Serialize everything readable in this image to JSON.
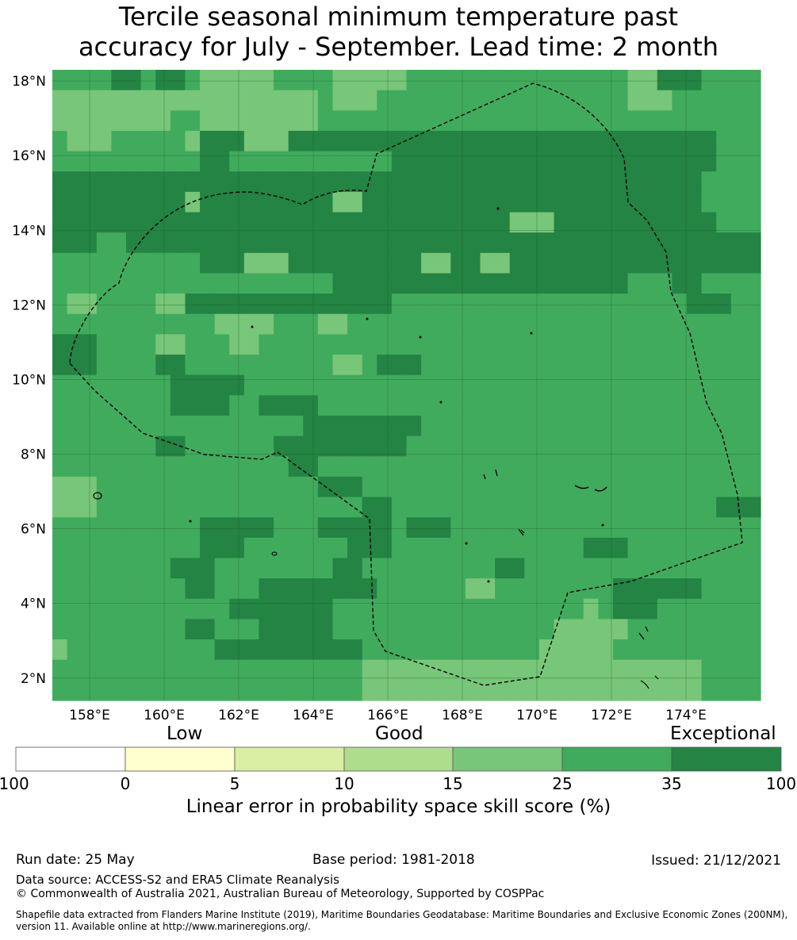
{
  "title": {
    "line1": "Tercile seasonal minimum temperature past",
    "line2": "accuracy for July - September. Lead time: 2 month"
  },
  "map": {
    "lon_labels": [
      "158°E",
      "160°E",
      "162°E",
      "164°E",
      "166°E",
      "168°E",
      "170°E",
      "172°E",
      "174°E"
    ],
    "lat_labels": [
      "18°N",
      "16°N",
      "14°N",
      "12°N",
      "10°N",
      "8°N",
      "6°N",
      "4°N",
      "2°N"
    ],
    "lon_range": [
      157.0,
      176.0
    ],
    "lat_range": [
      1.4,
      18.3
    ],
    "grid_cell_deg": 0.833,
    "rows_north_to_south": [
      "MMMMDDMMMMLLLLMMMMMMMMLLMMMMMMMMMMMMMMMMMMMMMMMM",
      "LLLLLLLLMMLLLLLLLLMMMMMMMMMMMMMMMMMMMMMMMMMMMMMM",
      "LLLLLLLLMMLLLLLLLLMMMMMMMMMMMMMMMMMMMMMMMMMMMMMM",
      "MMMMMMMMMMDDDDDDDDDDDDDDDDDDDDDDDDDDDDDDDDDDDMMM",
      "MMMMMMMMMMDDDDDDDDDDDDDDDDDDDDDDDDDDDDDDDDDDDMMM",
      "DDDDDDDDDDDDDDDDDDDDDDDDDDDDDDDDDDDDDDDDDDDDMMMM",
      "DDDDDDDDDDDDDDDDDDDDDDDDDDDDDDDDDDDDDDDDDDDDMMMM",
      "DDDDDDDDDDDDDDDDDDDDDDDDDDDDDDDDDDDDDDDDDDDDDMMM",
      "DDDDDDDDDDDDDDDDDDDDDDDDDDDDDDDDDDDDDDDDDDDDDDDD",
      "MMMMMMMMMMDDDDDDDDDDDDDDDDDDDDDDDDDDDDDDDDDDDDDD",
      "MMMMMMMMMMMMMMDDDDDDDDDDDDDDDDDDDDDDDDDDDDDDMMMM",
      "MMMMMMMMMMMMMMMMMMMMMMMMMMMMMMMMMMMMMMMMMMMMMMMM",
      "MMMMMMMMMMMMMMMMMMMMMMMMMMMMMMMMMMMMMMMMMMMMMMMM",
      "MMMMMMMMMMMMMMMMMMMMMMMMMMMMMMMMMMMMMMMMMMMMMMMM",
      "MMMMMMMMMMMMMMMMMMMMMMMMMMMMMMMMMMMMMMMMMMMMMMMM",
      "MMMMMMMMMMMMMMMMMMMMMMMMMMMMMMMMMMMMMMMMMMMMMMMM",
      "MMMMMMMMMMMMMMMMMMMMMMMMMMMMMMMMMMMMMMMMMMMMMMMM",
      "MMMMMMMMMMMMMMMMMMMMMMMMMMMMMMMMMMMMMMMMMMMMMMMM",
      "MMMMMMMMMMMMMMMMMMMMMMMMMMMMMMMMMMMMMMMMMMMMMMMM",
      "MMMMMMMMMMMMMMMMMMMMMMMMMMMMMMMMMMMMMMMMMMMMMMMM",
      "MMMMMMMMMMMMMMMMMMMMMMMMMMMMMMMMMMMMMMMMMMMMMMMM",
      "MMMMMMMMMMMMMMMMMMMMMMMMMMMMMMMMMMMMMMMMMMMMMMMM",
      "MMMMMMMMMMMMMMMMMMMMMMMMMMMMMMMMMMMMMMMMMMMMMMMM",
      "MMMMMMMMMMMMMMMMMMMMMMMMMMMMMMMMMMMMMMMMMMMMMMMM",
      "MMMMMMMMMMMMMMMMMMMMMMMMMMMMMMMMMMMMMMMMMMMMMMMM",
      "MMMMMMMMMMMMMMMMMMMMMMMMMMMMMMMMMMMMMMMMMMMMMMMM",
      "MMMMMMMMMMMMMMMMMMMMMMMMMMMMMMMMMMMMMMMMMMMMMMMM",
      "MMMMMMMMMMMMMMMMMMMMMMMMMMMMMMMMMMMMMMMMMMMMMMMM",
      "MMMMMMMMMMMMMMMMMMMMMMMMMMMMMMMMMMMMMMMMMMMMMMMM",
      "MMMMMMMMMMMMMMMMMMMMMMMMMMMMMMMMMMMMMMMMMMMMMMMM",
      "MMMMMMMMMMMMMMMMMMMMMMMMMMMMMMMMMMMMMMMMMMMMMMMM"
    ],
    "overrides": [
      [
        "L",
        0,
        13,
        15
      ],
      [
        "L",
        0,
        19,
        22
      ],
      [
        "L",
        0,
        39,
        42
      ],
      [
        "D",
        0,
        7,
        9
      ],
      [
        "D",
        0,
        41,
        44
      ],
      [
        "L",
        1,
        0,
        12
      ],
      [
        "L",
        1,
        19,
        22
      ],
      [
        "L",
        1,
        39,
        42
      ],
      [
        "L",
        2,
        0,
        2
      ],
      [
        "L",
        2,
        5,
        7
      ],
      [
        "L",
        2,
        12,
        13
      ],
      [
        "L",
        2,
        14,
        16
      ],
      [
        "L",
        3,
        1,
        4
      ],
      [
        "L",
        3,
        9,
        10
      ],
      [
        "L",
        3,
        13,
        16
      ],
      [
        "L",
        3,
        15,
        16
      ],
      [
        "D",
        4,
        24,
        27
      ],
      [
        "D",
        4,
        38,
        42
      ],
      [
        "M",
        4,
        12,
        23
      ],
      [
        "D",
        5,
        10,
        23
      ],
      [
        "D",
        5,
        23,
        39
      ],
      [
        "D",
        6,
        1,
        5
      ],
      [
        "D",
        6,
        10,
        23
      ],
      [
        "L",
        6,
        9,
        10
      ],
      [
        "L",
        6,
        19,
        21
      ],
      [
        "D",
        7,
        0,
        5
      ],
      [
        "D",
        7,
        9,
        31
      ],
      [
        "L",
        7,
        31,
        34
      ],
      [
        "M",
        8,
        3,
        5
      ],
      [
        "D",
        8,
        0,
        3
      ],
      [
        "D",
        8,
        5,
        50
      ],
      [
        "L",
        9,
        13,
        16
      ],
      [
        "L",
        9,
        25,
        27
      ],
      [
        "L",
        9,
        29,
        31
      ],
      [
        "M",
        10,
        5,
        6
      ],
      [
        "M",
        10,
        14,
        19
      ],
      [
        "M",
        10,
        39,
        42
      ],
      [
        "L",
        11,
        1,
        3
      ],
      [
        "L",
        11,
        7,
        9
      ],
      [
        "D",
        11,
        9,
        23
      ],
      [
        "M",
        11,
        40,
        44
      ],
      [
        "D",
        11,
        43,
        46
      ],
      [
        "M",
        12,
        6,
        9
      ],
      [
        "L",
        12,
        11,
        15
      ],
      [
        "L",
        12,
        18,
        20
      ],
      [
        "D",
        13,
        0,
        3
      ],
      [
        "L",
        13,
        7,
        9
      ],
      [
        "L",
        13,
        12,
        14
      ],
      [
        "D",
        14,
        0,
        3
      ],
      [
        "D",
        14,
        7,
        9
      ],
      [
        "M",
        14,
        9,
        13
      ],
      [
        "L",
        14,
        19,
        21
      ],
      [
        "D",
        14,
        22,
        25
      ],
      [
        "M",
        15,
        4,
        7
      ],
      [
        "D",
        15,
        8,
        13
      ],
      [
        "M",
        15,
        13,
        15
      ],
      [
        "D",
        16,
        8,
        12
      ],
      [
        "D",
        16,
        14,
        18
      ],
      [
        "M",
        16,
        39,
        43
      ],
      [
        "D",
        17,
        17,
        25
      ],
      [
        "M",
        17,
        25,
        28
      ],
      [
        "M",
        17,
        45,
        48
      ],
      [
        "D",
        18,
        7,
        9
      ],
      [
        "D",
        18,
        15,
        24
      ],
      [
        "D",
        19,
        16,
        18
      ],
      [
        "M",
        19,
        28,
        32
      ],
      [
        "L",
        20,
        0,
        3
      ],
      [
        "D",
        20,
        18,
        21
      ],
      [
        "L",
        21,
        0,
        3
      ],
      [
        "D",
        21,
        21,
        23
      ],
      [
        "D",
        21,
        45,
        48
      ],
      [
        "D",
        22,
        10,
        15
      ],
      [
        "D",
        22,
        18,
        23
      ],
      [
        "D",
        22,
        24,
        27
      ],
      [
        "D",
        23,
        10,
        13
      ],
      [
        "D",
        23,
        20,
        23
      ],
      [
        "D",
        23,
        36,
        39
      ],
      [
        "D",
        24,
        8,
        11
      ],
      [
        "D",
        24,
        19,
        21
      ],
      [
        "D",
        24,
        30,
        32
      ],
      [
        "D",
        25,
        9,
        11
      ],
      [
        "D",
        25,
        14,
        22
      ],
      [
        "L",
        25,
        28,
        30
      ],
      [
        "D",
        25,
        38,
        44
      ],
      [
        "D",
        26,
        12,
        19
      ],
      [
        "D",
        26,
        38,
        41
      ],
      [
        "L",
        26,
        36,
        37
      ],
      [
        "D",
        27,
        9,
        11
      ],
      [
        "D",
        27,
        14,
        19
      ],
      [
        "L",
        27,
        34,
        39
      ],
      [
        "L",
        28,
        0,
        1
      ],
      [
        "D",
        28,
        11,
        21
      ],
      [
        "L",
        28,
        33,
        38
      ],
      [
        "L",
        29,
        29,
        33
      ],
      [
        "L",
        29,
        36,
        39
      ],
      [
        "L",
        29,
        21,
        44
      ],
      [
        "L",
        30,
        21,
        44
      ]
    ],
    "boundary_style": "dashed"
  },
  "legend": {
    "category_labels": [
      "Low",
      "Good",
      "Exceptional"
    ],
    "ticks": [
      "-100",
      "0",
      "5",
      "10",
      "15",
      "25",
      "35",
      "100"
    ],
    "colors": [
      "#ffffff",
      "#fefece",
      "#d9efa3",
      "#aedd8e",
      "#78c679",
      "#41ab5d",
      "#238443"
    ],
    "caption": "Linear error in probability space skill score (%)"
  },
  "footer": {
    "run_date": "Run date: 25 May",
    "base_period": "Base period: 1981-2018",
    "issued": "Issued: 21/12/2021",
    "data_source": "Data source: ACCESS-S2 and ERA5 Climate Reanalysis",
    "copyright": "© Commonwealth of Australia 2021, Australian Bureau of Meteorology, Supported by COSPPac",
    "shapefile": "Shapefile data extracted from Flanders Marine Institute (2019), Maritime Boundaries Geodatabase: Maritime Boundaries and Exclusive Economic Zones (200NM), version 11. Available online at http://www.marineregions.org/."
  }
}
